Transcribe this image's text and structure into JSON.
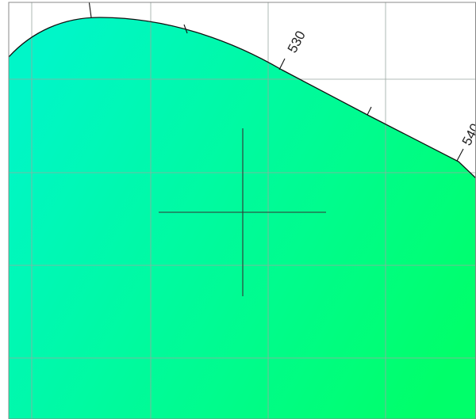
{
  "chart_data": {
    "type": "chromaticity-diagram",
    "title": "",
    "xlabel": "",
    "ylabel": "",
    "grid": true,
    "legend": "none",
    "locus_wavelength_labels_nm": [
      "530",
      "540"
    ],
    "locus_tick_wavelengths_nm": [
      510,
      520,
      525,
      530,
      535,
      540
    ],
    "crosshair": true,
    "colors": {
      "frame": "#888888",
      "grid": "#9aa7a1",
      "locus_line": "#111111",
      "fill_left": "#00f6c8",
      "fill_right": "#00ff6a",
      "crosshair": "#333333"
    }
  }
}
